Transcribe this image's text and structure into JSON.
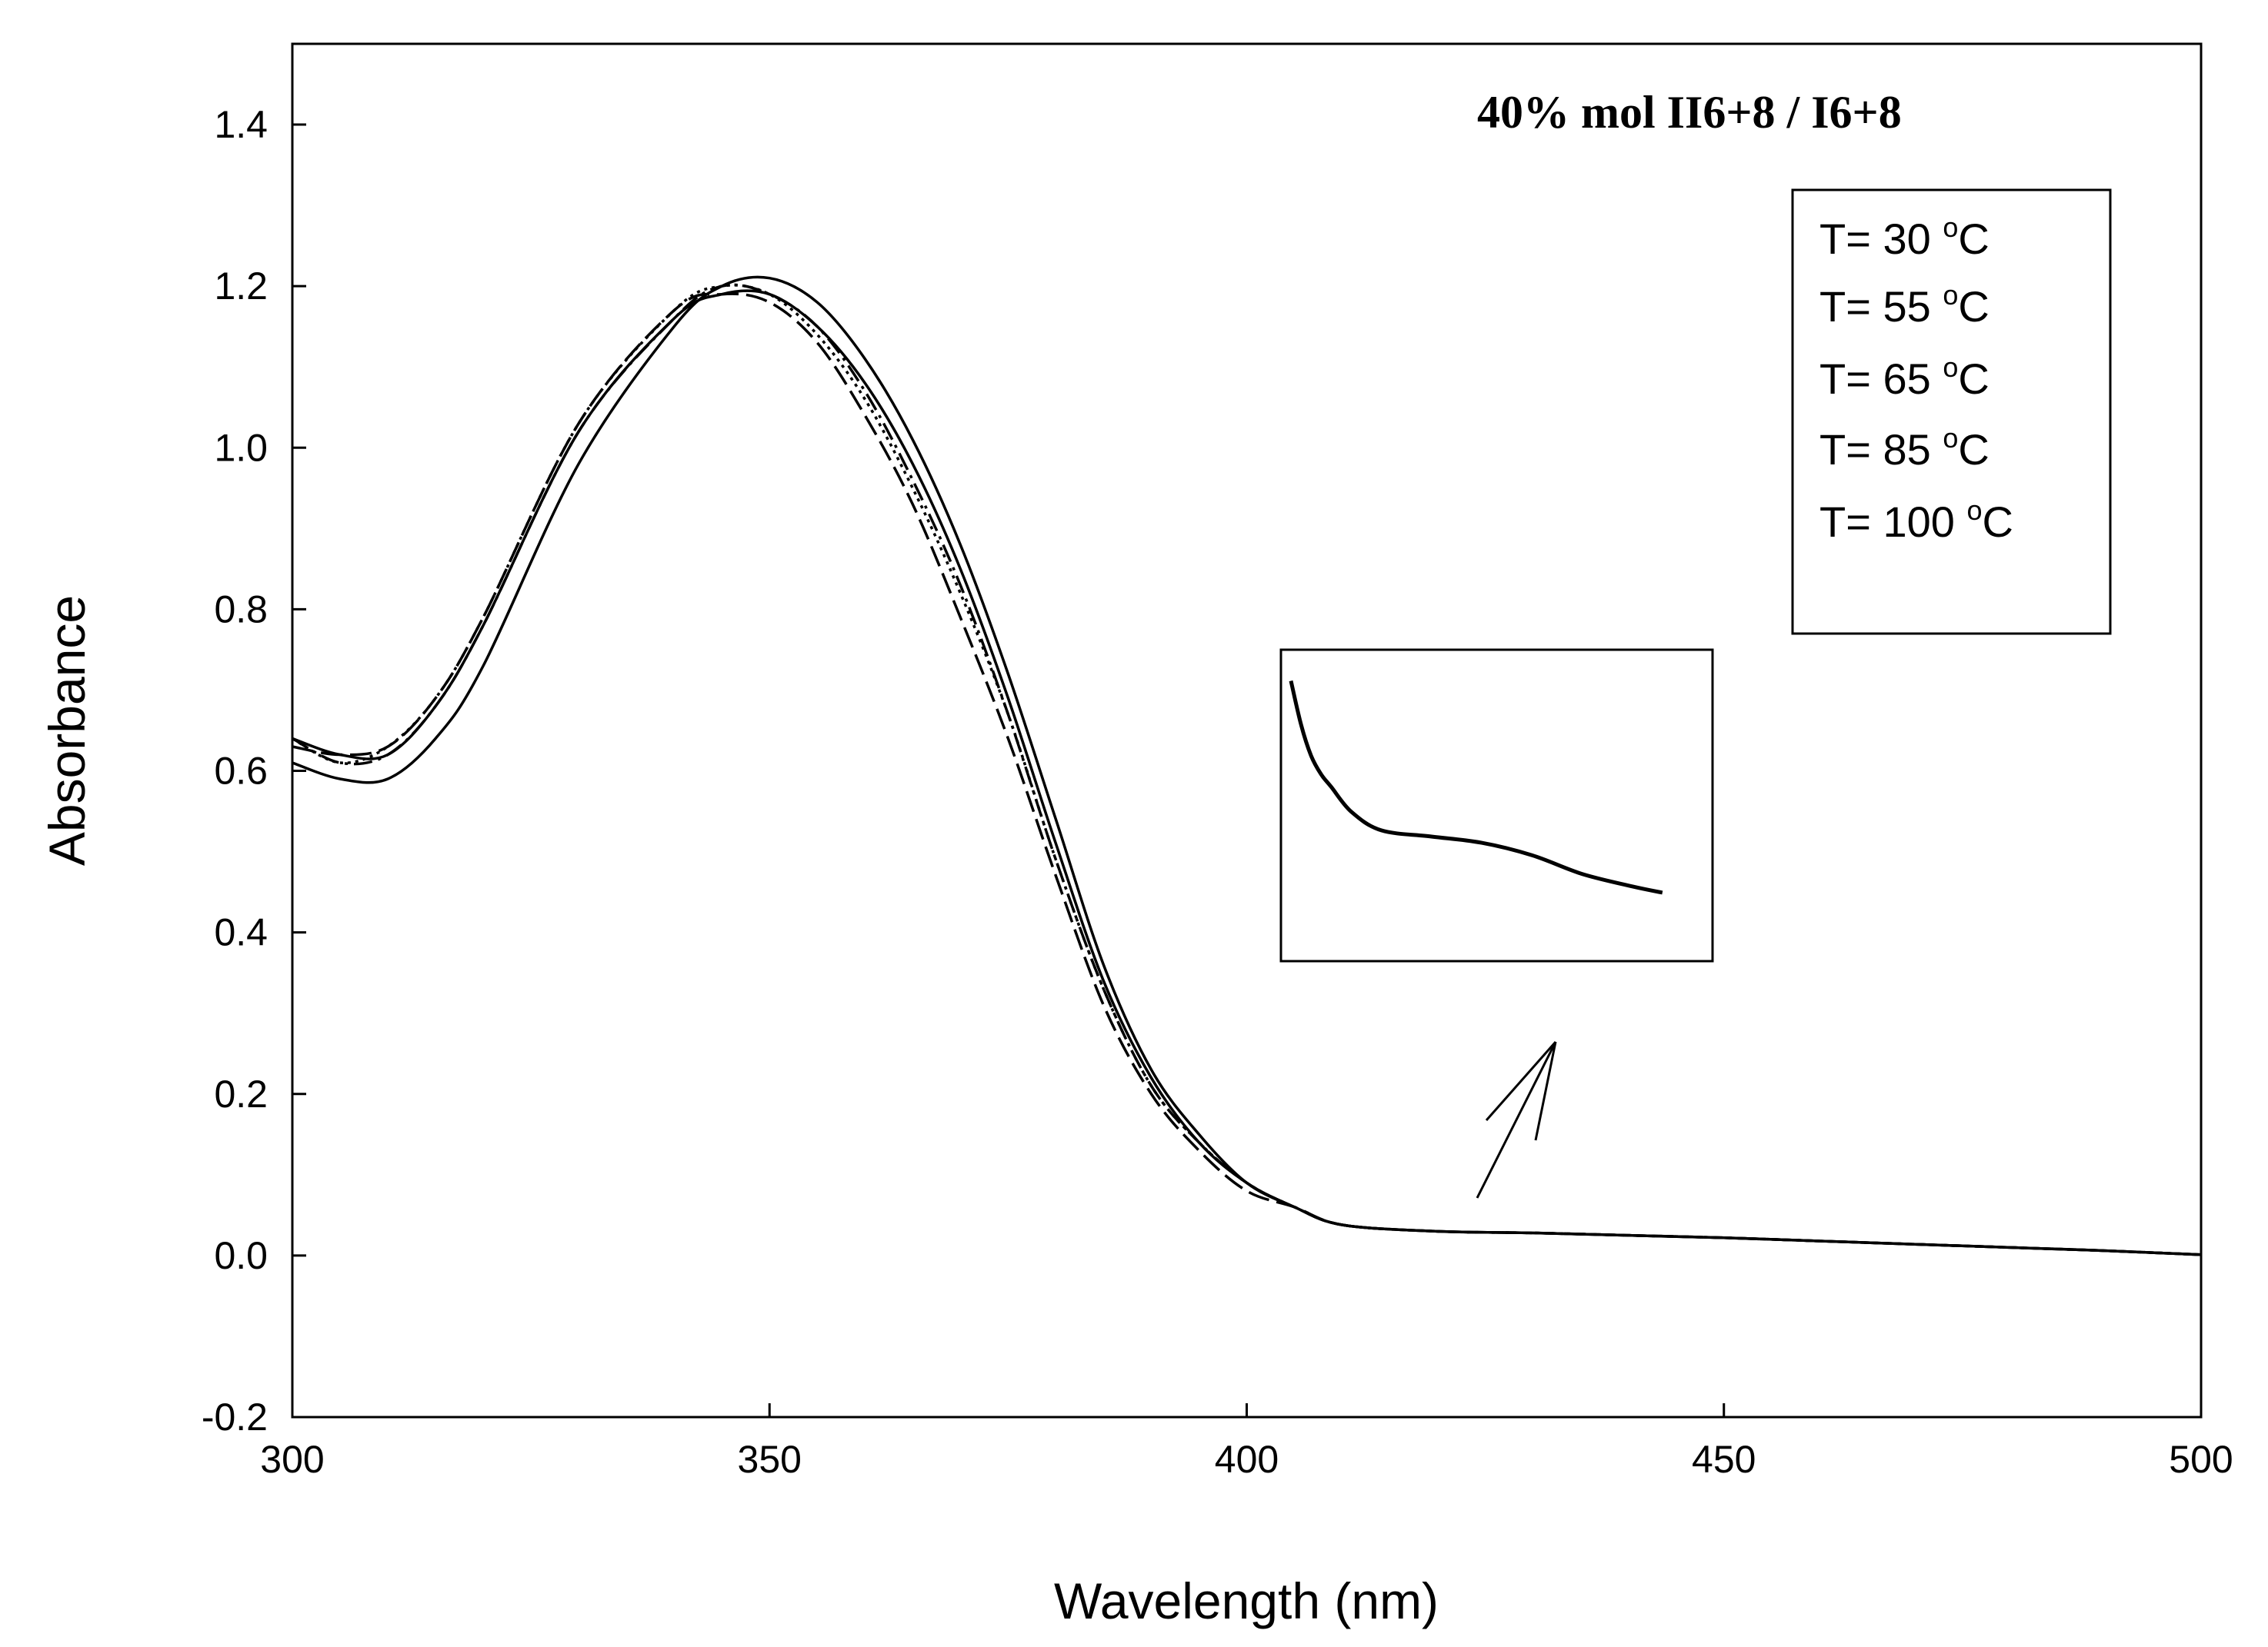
{
  "chart_data": {
    "type": "line",
    "title": "40% mol II6+8 / I6+8",
    "xlabel": "Wavelength (nm)",
    "ylabel": "Absorbance",
    "xlim": [
      300,
      500
    ],
    "ylim": [
      -0.2,
      1.5
    ],
    "x_ticks": [
      "300",
      "350",
      "400",
      "450",
      "500"
    ],
    "y_ticks": [
      "-0.2",
      "0.0",
      "0.2",
      "0.4",
      "0.6",
      "0.8",
      "1.0",
      "1.2",
      "1.4"
    ],
    "legend_position": "top-right",
    "legend": [
      {
        "prefix": "T= 30 ",
        "sup": "o",
        "suffix": "C"
      },
      {
        "prefix": "T= 55 ",
        "sup": "o",
        "suffix": "C"
      },
      {
        "prefix": "T= 65 ",
        "sup": "o",
        "suffix": "C"
      },
      {
        "prefix": "T= 85 ",
        "sup": "o",
        "suffix": "C"
      },
      {
        "prefix": "T= 100 ",
        "sup": "o",
        "suffix": "C"
      }
    ],
    "series": [
      {
        "name": "T= 30 oC",
        "style": "dotted",
        "x": [
          300,
          305,
          310,
          315,
          320,
          330,
          340,
          345,
          350,
          355,
          360,
          365,
          370,
          375,
          380,
          385,
          390,
          395,
          400,
          405,
          410,
          420,
          430,
          440,
          450,
          460,
          470,
          480,
          490,
          500
        ],
        "y": [
          0.64,
          0.61,
          0.63,
          0.69,
          0.79,
          1.03,
          1.17,
          1.2,
          1.19,
          1.14,
          1.06,
          0.95,
          0.82,
          0.67,
          0.49,
          0.33,
          0.21,
          0.14,
          0.09,
          0.06,
          0.038,
          0.03,
          0.028,
          0.025,
          0.022,
          0.018,
          0.014,
          0.01,
          0.006,
          0.001
        ]
      },
      {
        "name": "T= 55 oC",
        "style": "solid",
        "x": [
          300,
          305,
          310,
          315,
          320,
          330,
          340,
          345,
          350,
          355,
          360,
          365,
          370,
          375,
          380,
          385,
          390,
          395,
          400,
          405,
          410,
          420,
          430,
          440,
          450,
          460,
          470,
          480,
          490,
          500
        ],
        "y": [
          0.64,
          0.62,
          0.62,
          0.68,
          0.78,
          1.02,
          1.16,
          1.19,
          1.19,
          1.15,
          1.08,
          0.98,
          0.85,
          0.69,
          0.51,
          0.34,
          0.22,
          0.14,
          0.09,
          0.06,
          0.038,
          0.03,
          0.028,
          0.025,
          0.022,
          0.018,
          0.014,
          0.01,
          0.006,
          0.001
        ]
      },
      {
        "name": "T= 65 oC",
        "style": "solid",
        "x": [
          300,
          305,
          310,
          315,
          320,
          330,
          340,
          345,
          350,
          355,
          360,
          365,
          370,
          375,
          380,
          385,
          390,
          395,
          400,
          405,
          410,
          420,
          430,
          440,
          450,
          460,
          470,
          480,
          490,
          500
        ],
        "y": [
          0.61,
          0.59,
          0.59,
          0.64,
          0.73,
          0.98,
          1.15,
          1.2,
          1.21,
          1.18,
          1.11,
          1.01,
          0.88,
          0.72,
          0.54,
          0.36,
          0.23,
          0.15,
          0.09,
          0.06,
          0.038,
          0.03,
          0.028,
          0.025,
          0.022,
          0.018,
          0.014,
          0.01,
          0.006,
          0.001
        ]
      },
      {
        "name": "T= 85 oC",
        "style": "dashed",
        "x": [
          300,
          305,
          310,
          315,
          320,
          330,
          340,
          345,
          350,
          355,
          360,
          365,
          370,
          375,
          380,
          385,
          390,
          395,
          400,
          405,
          410,
          420,
          430,
          440,
          450,
          460,
          470,
          480,
          490,
          500
        ],
        "y": [
          0.63,
          0.62,
          0.63,
          0.69,
          0.79,
          1.03,
          1.17,
          1.19,
          1.18,
          1.13,
          1.04,
          0.93,
          0.79,
          0.64,
          0.47,
          0.31,
          0.2,
          0.13,
          0.08,
          0.06,
          0.038,
          0.03,
          0.028,
          0.025,
          0.022,
          0.018,
          0.014,
          0.01,
          0.006,
          0.001
        ]
      },
      {
        "name": "T= 100 oC",
        "style": "dash-dot",
        "x": [
          300,
          305,
          310,
          315,
          320,
          330,
          340,
          345,
          350,
          355,
          360,
          365,
          370,
          375,
          380,
          385,
          390,
          395,
          400,
          405,
          410,
          420,
          430,
          440,
          450,
          460,
          470,
          480,
          490,
          500
        ],
        "y": [
          0.64,
          0.61,
          0.62,
          0.68,
          0.78,
          1.02,
          1.16,
          1.2,
          1.19,
          1.15,
          1.07,
          0.96,
          0.83,
          0.67,
          0.49,
          0.33,
          0.21,
          0.14,
          0.09,
          0.06,
          0.038,
          0.03,
          0.028,
          0.025,
          0.022,
          0.018,
          0.014,
          0.01,
          0.006,
          0.001
        ]
      }
    ],
    "inset": {
      "description": "zoom of tail region",
      "x": [
        406,
        407,
        408,
        409,
        410,
        412,
        415,
        420,
        425,
        430,
        435,
        440,
        443
      ],
      "y": [
        0.055,
        0.048,
        0.043,
        0.04,
        0.038,
        0.034,
        0.031,
        0.03,
        0.029,
        0.027,
        0.024,
        0.022,
        0.021
      ]
    }
  }
}
